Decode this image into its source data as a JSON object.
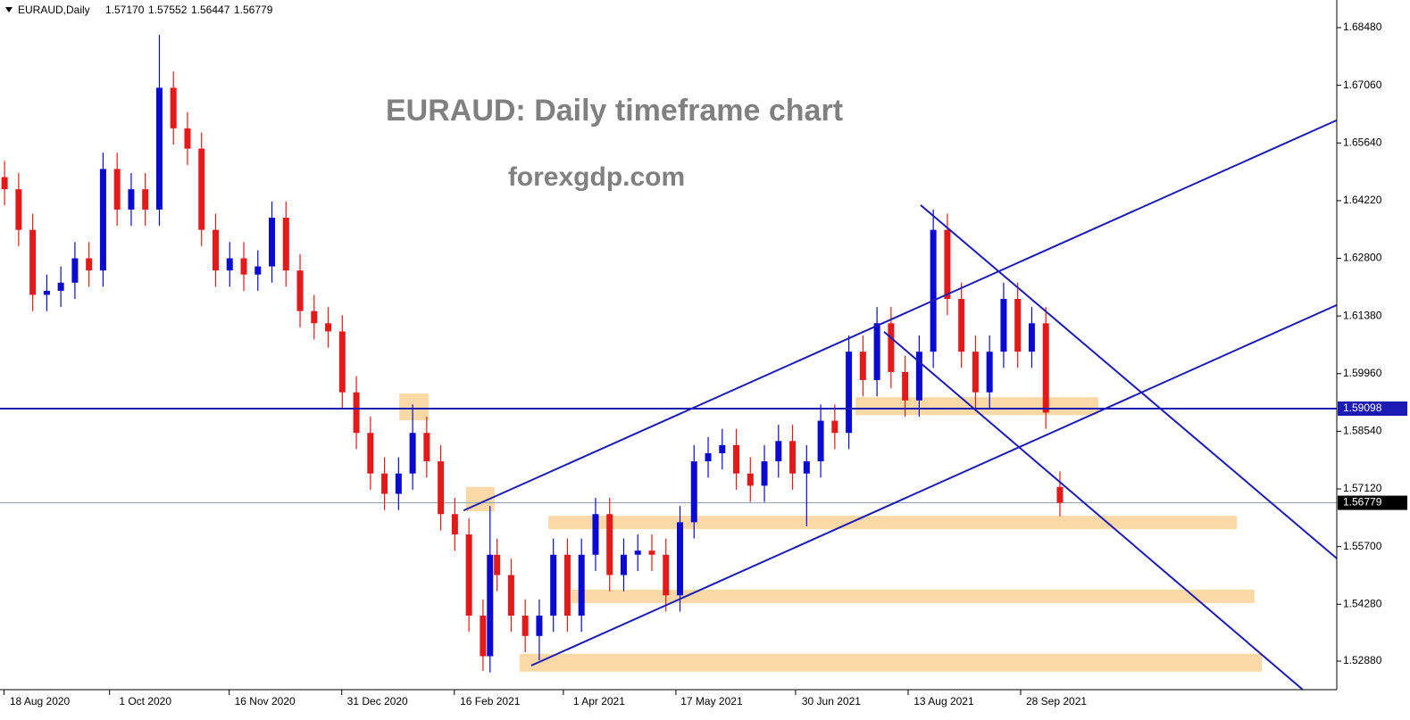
{
  "chart_data": {
    "type": "candlestick",
    "symbol": "EURAUD,Daily",
    "ohlc_labels": [
      "1.57170",
      "1.57552",
      "1.56447",
      "1.56779"
    ],
    "title": "EURAUD: Daily timeframe chart",
    "subtitle": "forexgdp.com",
    "xlim": [
      -1.3,
      378.7
    ],
    "xticks": [
      {
        "value": 10,
        "label": "18 Aug 2020"
      },
      {
        "value": 40,
        "label": "1 Oct 2020"
      },
      {
        "value": 74,
        "label": "16 Nov 2020"
      },
      {
        "value": 106,
        "label": "31 Dec 2020"
      },
      {
        "value": 138,
        "label": "16 Feb 2021"
      },
      {
        "value": 169,
        "label": "1 Apr 2021"
      },
      {
        "value": 201,
        "label": "17 May 2021"
      },
      {
        "value": 235,
        "label": "30 Jun 2021"
      },
      {
        "value": 267,
        "label": "13 Aug 2021"
      },
      {
        "value": 299,
        "label": "28 Sep 2021"
      }
    ],
    "ylim": [
      1.52177,
      1.69161
    ],
    "yticks": [
      {
        "value": 1.6848,
        "label": "1.68480"
      },
      {
        "value": 1.6706,
        "label": "1.67060"
      },
      {
        "value": 1.6564,
        "label": "1.65640"
      },
      {
        "value": 1.6422,
        "label": "1.64220"
      },
      {
        "value": 1.628,
        "label": "1.62800"
      },
      {
        "value": 1.6138,
        "label": "1.61380"
      },
      {
        "value": 1.5996,
        "label": "1.59960"
      },
      {
        "value": 1.5854,
        "label": "1.58540"
      },
      {
        "value": 1.5712,
        "label": "1.57120"
      },
      {
        "value": 1.557,
        "label": "1.55700"
      },
      {
        "value": 1.5428,
        "label": "1.54280"
      },
      {
        "value": 1.5288,
        "label": "1.52880"
      }
    ],
    "up_color": "#0a0ad2",
    "down_color": "#e41a1a",
    "x": [
      0,
      4,
      8,
      12,
      16,
      20,
      24,
      28,
      32,
      36,
      40,
      44,
      48,
      52,
      56,
      60,
      64,
      68,
      72,
      76,
      80,
      84,
      88,
      92,
      96,
      100,
      104,
      108,
      112,
      116,
      120,
      124,
      128,
      132,
      136,
      138,
      140,
      144,
      148,
      152,
      156,
      160,
      164,
      168,
      172,
      176,
      180,
      184,
      188,
      192,
      196,
      200,
      204,
      208,
      212,
      216,
      220,
      224,
      228,
      232,
      236,
      240,
      244,
      248,
      252,
      256,
      260,
      264,
      268,
      272,
      276,
      280,
      284,
      288,
      292,
      296,
      300
    ],
    "open": [
      1.648,
      1.645,
      1.635,
      1.619,
      1.62,
      1.622,
      1.628,
      1.625,
      1.65,
      1.64,
      1.645,
      1.64,
      1.67,
      1.66,
      1.655,
      1.635,
      1.625,
      1.628,
      1.624,
      1.626,
      1.638,
      1.625,
      1.615,
      1.612,
      1.61,
      1.595,
      1.585,
      1.575,
      1.57,
      1.575,
      1.585,
      1.578,
      1.565,
      1.56,
      1.54,
      1.53,
      1.555,
      1.55,
      1.54,
      1.535,
      1.54,
      1.555,
      1.54,
      1.555,
      1.565,
      1.55,
      1.555,
      1.556,
      1.555,
      1.545,
      1.563,
      1.578,
      1.58,
      1.582,
      1.575,
      1.572,
      1.578,
      1.583,
      1.575,
      1.578,
      1.588,
      1.585,
      1.605,
      1.598,
      1.612,
      1.6,
      1.593,
      1.605,
      1.635,
      1.618,
      1.605,
      1.595,
      1.605,
      1.618,
      1.605,
      1.612,
      1.5717
    ],
    "high": [
      1.652,
      1.649,
      1.639,
      1.624,
      1.626,
      1.632,
      1.632,
      1.654,
      1.654,
      1.649,
      1.649,
      1.683,
      1.674,
      1.664,
      1.659,
      1.639,
      1.632,
      1.632,
      1.63,
      1.642,
      1.642,
      1.629,
      1.619,
      1.616,
      1.614,
      1.599,
      1.589,
      1.579,
      1.579,
      1.592,
      1.589,
      1.582,
      1.569,
      1.564,
      1.544,
      1.567,
      1.559,
      1.554,
      1.544,
      1.544,
      1.559,
      1.559,
      1.559,
      1.569,
      1.569,
      1.559,
      1.56,
      1.56,
      1.559,
      1.567,
      1.582,
      1.584,
      1.586,
      1.586,
      1.579,
      1.582,
      1.587,
      1.587,
      1.582,
      1.592,
      1.592,
      1.609,
      1.609,
      1.616,
      1.616,
      1.604,
      1.609,
      1.64,
      1.639,
      1.622,
      1.609,
      1.609,
      1.622,
      1.622,
      1.616,
      1.616,
      1.57552
    ],
    "low": [
      1.641,
      1.631,
      1.615,
      1.615,
      1.616,
      1.618,
      1.621,
      1.621,
      1.636,
      1.636,
      1.636,
      1.636,
      1.656,
      1.651,
      1.631,
      1.621,
      1.621,
      1.62,
      1.62,
      1.622,
      1.621,
      1.611,
      1.608,
      1.606,
      1.591,
      1.581,
      1.571,
      1.566,
      1.566,
      1.571,
      1.574,
      1.561,
      1.556,
      1.536,
      1.5264,
      1.526,
      1.546,
      1.536,
      1.531,
      1.529,
      1.536,
      1.536,
      1.536,
      1.551,
      1.546,
      1.546,
      1.551,
      1.551,
      1.541,
      1.541,
      1.559,
      1.574,
      1.576,
      1.571,
      1.568,
      1.568,
      1.574,
      1.571,
      1.562,
      1.574,
      1.581,
      1.581,
      1.594,
      1.594,
      1.596,
      1.589,
      1.589,
      1.601,
      1.614,
      1.601,
      1.591,
      1.591,
      1.601,
      1.601,
      1.601,
      1.586,
      1.56447
    ],
    "close": [
      1.645,
      1.635,
      1.619,
      1.62,
      1.622,
      1.628,
      1.625,
      1.65,
      1.64,
      1.645,
      1.64,
      1.67,
      1.66,
      1.655,
      1.635,
      1.625,
      1.628,
      1.624,
      1.626,
      1.638,
      1.625,
      1.615,
      1.612,
      1.61,
      1.595,
      1.585,
      1.575,
      1.57,
      1.575,
      1.585,
      1.578,
      1.565,
      1.56,
      1.54,
      1.53,
      1.555,
      1.55,
      1.54,
      1.535,
      1.54,
      1.555,
      1.54,
      1.555,
      1.565,
      1.55,
      1.555,
      1.556,
      1.555,
      1.545,
      1.563,
      1.578,
      1.58,
      1.582,
      1.575,
      1.572,
      1.578,
      1.583,
      1.575,
      1.578,
      1.588,
      1.585,
      1.605,
      1.598,
      1.612,
      1.6,
      1.593,
      1.605,
      1.635,
      1.618,
      1.605,
      1.595,
      1.605,
      1.618,
      1.605,
      1.612,
      1.59,
      1.56779
    ],
    "level": {
      "value": 1.59098,
      "label": "1.59098",
      "color": "#1c1cb4"
    },
    "current": {
      "value": 1.56779,
      "label": "1.56779"
    },
    "trendlines": [
      {
        "x": [
          130.5,
          378.7
        ],
        "y": [
          1.5659,
          1.662
        ]
      },
      {
        "x": [
          149.7,
          378.7
        ],
        "y": [
          1.5277,
          1.6165
        ]
      },
      {
        "x": [
          260.4,
          378.7
        ],
        "y": [
          1.6411,
          1.5541
        ]
      },
      {
        "x": [
          250,
          369
        ],
        "y": [
          1.6099,
          1.5218
        ]
      }
    ],
    "zones": [
      {
        "x": [
          112.2,
          120.6
        ],
        "y": [
          1.5947,
          1.5881
        ]
      },
      {
        "x": [
          131.2,
          139.3
        ],
        "y": [
          1.5717,
          1.5657
        ]
      },
      {
        "x": [
          154.6,
          350.3
        ],
        "y": [
          1.5646,
          1.5613
        ]
      },
      {
        "x": [
          241.9,
          310.9
        ],
        "y": [
          1.5938,
          1.5894
        ]
      },
      {
        "x": [
          161.2,
          355.3
        ],
        "y": [
          1.5464,
          1.5431
        ]
      },
      {
        "x": [
          146.4,
          357.4
        ],
        "y": [
          1.5306,
          1.5262
        ]
      }
    ],
    "zone_color": "#fbd9a6",
    "line_color": "#1c1cb4"
  }
}
